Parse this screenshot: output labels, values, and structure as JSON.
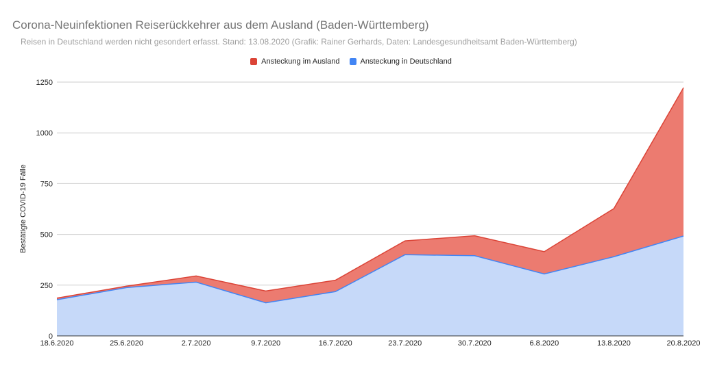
{
  "chart_data": {
    "type": "area",
    "stacked": true,
    "title": "Corona-Neuinfektionen Reiserückkehrer aus dem Ausland (Baden-Württemberg)",
    "subtitle": "Reisen in Deutschland werden nicht gesondert erfasst. Stand: 13.08.2020 (Grafik: Rainer Gerhards, Daten: Landesgesundheitsamt Baden-Württemberg)",
    "ylabel": "Bestätigte COVID-19 Fälle",
    "xlabel": "",
    "categories": [
      "18.6.2020",
      "25.6.2020",
      "2.7.2020",
      "9.7.2020",
      "16.7.2020",
      "23.7.2020",
      "30.7.2020",
      "6.8.2020",
      "13.8.2020",
      "20.8.2020"
    ],
    "yticks": [
      "0",
      "250",
      "500",
      "750",
      "1000",
      "1250"
    ],
    "ylim": [
      0,
      1250
    ],
    "legend_position": "top",
    "grid": true,
    "series": [
      {
        "name": "Ansteckung im Ausland",
        "color": "#db4437",
        "fill": "#ec7b70",
        "values": [
          8,
          7,
          30,
          58,
          56,
          68,
          98,
          110,
          237,
          730
        ]
      },
      {
        "name": "Ansteckung in Deutschland",
        "color": "#4285f4",
        "fill": "#c6d9f9",
        "values": [
          178,
          238,
          265,
          163,
          218,
          400,
          395,
          305,
          390,
          492
        ]
      }
    ]
  }
}
